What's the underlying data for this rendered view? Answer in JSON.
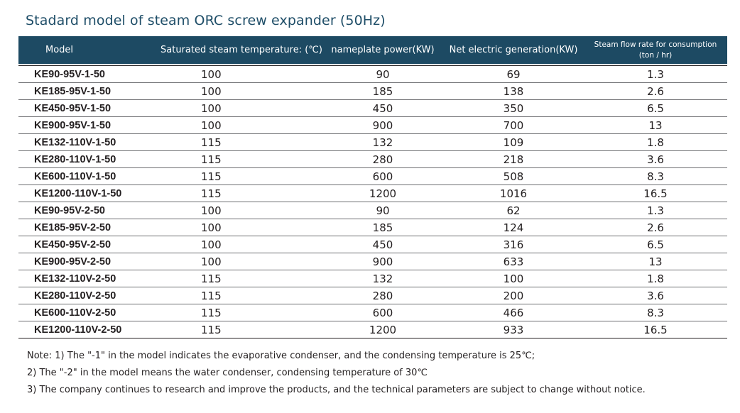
{
  "title": "Stadard model of steam ORC screw expander (50Hz)",
  "table": {
    "headers": {
      "model": "Model",
      "temperature": "Saturated steam temperature: (℃)",
      "nameplate": "nameplate power(KW)",
      "net": "Net electric generation(KW)",
      "flow_line1": "Steam flow rate for consumption",
      "flow_line2": "(ton / hr)"
    },
    "rows": [
      {
        "model": "KE90-95V-1-50",
        "temp": "100",
        "nameplate": "90",
        "net": "69",
        "flow": "1.3"
      },
      {
        "model": "KE185-95V-1-50",
        "temp": "100",
        "nameplate": "185",
        "net": "138",
        "flow": "2.6"
      },
      {
        "model": "KE450-95V-1-50",
        "temp": "100",
        "nameplate": "450",
        "net": "350",
        "flow": "6.5"
      },
      {
        "model": "KE900-95V-1-50",
        "temp": "100",
        "nameplate": "900",
        "net": "700",
        "flow": "13"
      },
      {
        "model": "KE132-110V-1-50",
        "temp": "115",
        "nameplate": "132",
        "net": "109",
        "flow": "1.8"
      },
      {
        "model": "KE280-110V-1-50",
        "temp": "115",
        "nameplate": "280",
        "net": "218",
        "flow": "3.6"
      },
      {
        "model": "KE600-110V-1-50",
        "temp": "115",
        "nameplate": "600",
        "net": "508",
        "flow": "8.3"
      },
      {
        "model": "KE1200-110V-1-50",
        "temp": "115",
        "nameplate": "1200",
        "net": "1016",
        "flow": "16.5"
      },
      {
        "model": "KE90-95V-2-50",
        "temp": "100",
        "nameplate": "90",
        "net": "62",
        "flow": "1.3"
      },
      {
        "model": "KE185-95V-2-50",
        "temp": "100",
        "nameplate": "185",
        "net": "124",
        "flow": "2.6"
      },
      {
        "model": "KE450-95V-2-50",
        "temp": "100",
        "nameplate": "450",
        "net": "316",
        "flow": "6.5"
      },
      {
        "model": "KE900-95V-2-50",
        "temp": "100",
        "nameplate": "900",
        "net": "633",
        "flow": "13"
      },
      {
        "model": "KE132-110V-2-50",
        "temp": "115",
        "nameplate": "132",
        "net": "100",
        "flow": "1.8"
      },
      {
        "model": "KE280-110V-2-50",
        "temp": "115",
        "nameplate": "280",
        "net": "200",
        "flow": "3.6"
      },
      {
        "model": "KE600-110V-2-50",
        "temp": "115",
        "nameplate": "600",
        "net": "466",
        "flow": "8.3"
      },
      {
        "model": "KE1200-110V-2-50",
        "temp": "115",
        "nameplate": "1200",
        "net": "933",
        "flow": "16.5"
      }
    ]
  },
  "notes": [
    "Note: 1) The \"-1\" in the model indicates the evaporative condenser, and the condensing temperature is 25℃;",
    "2) The \"-2\" in the model means the water condenser, condensing temperature of 30℃",
    "3) The company continues to research and improve the products, and the technical parameters are subject to change without notice."
  ],
  "colors": {
    "header_bg": "#1d4a63",
    "title": "#1f4e68",
    "text": "#231f20"
  }
}
